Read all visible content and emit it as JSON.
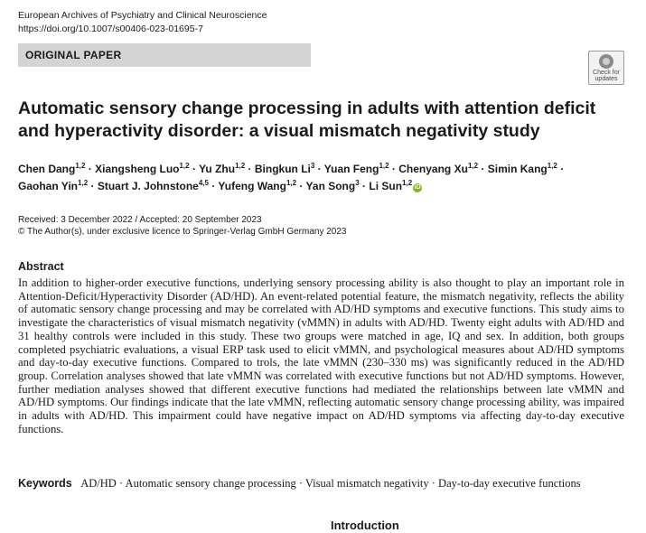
{
  "journal": {
    "name": "European Archives of Psychiatry and Clinical Neuroscience",
    "doi": "https://doi.org/10.1007/s00406-023-01695-7"
  },
  "section_label": "ORIGINAL PAPER",
  "check_updates": {
    "line1": "Check for",
    "line2": "updates"
  },
  "title": "Automatic sensory change processing in adults with attention deficit and hyperactivity disorder: a visual mismatch negativity study",
  "authors": [
    {
      "name": "Chen Dang",
      "aff": "1,2"
    },
    {
      "name": "Xiangsheng Luo",
      "aff": "1,2"
    },
    {
      "name": "Yu Zhu",
      "aff": "1,2"
    },
    {
      "name": "Bingkun Li",
      "aff": "3"
    },
    {
      "name": "Yuan Feng",
      "aff": "1,2"
    },
    {
      "name": "Chenyang Xu",
      "aff": "1,2"
    },
    {
      "name": "Simin Kang",
      "aff": "1,2"
    },
    {
      "name": "Gaohan Yin",
      "aff": "1,2"
    },
    {
      "name": "Stuart J. Johnstone",
      "aff": "4,5"
    },
    {
      "name": "Yufeng Wang",
      "aff": "1,2"
    },
    {
      "name": "Yan Song",
      "aff": "3"
    },
    {
      "name": "Li Sun",
      "aff": "1,2"
    }
  ],
  "orcid_label": "iD",
  "dates": {
    "received_accepted": "Received: 3 December 2022 / Accepted: 20 September 2023",
    "copyright": "© The Author(s), under exclusive licence to Springer-Verlag GmbH Germany 2023"
  },
  "abstract": {
    "heading": "Abstract",
    "body": "In addition to higher-order executive functions, underlying sensory processing ability is also thought to play an important role in Attention-Deficit/Hyperactivity Disorder (AD/HD). An event-related potential feature, the mismatch negativity, reflects the ability of automatic sensory change processing and may be correlated with AD/HD symptoms and executive functions. This study aims to investigate the characteristics of visual mismatch negativity (vMMN) in adults with AD/HD. Twenty eight adults with AD/HD and 31 healthy controls were included in this study. These two groups were matched in age, IQ and sex. In addition, both groups completed psychiatric evaluations, a visual ERP task used to elicit vMMN, and psychological measures about AD/HD symptoms and day-to-day executive functions. Compared to trols, the late vMMN (230–330 ms) was significantly reduced in the AD/HD group. Correlation analyses showed that late vMMN was correlated with executive functions but not AD/HD symptoms. However, further mediation analyses showed that different executive functions had mediated the relationships between late vMMN and AD/HD symptoms. Our findings indicate that the late vMMN, reflecting automatic sensory change processing ability, was impaired in adults with AD/HD. This impairment could have negative impact on AD/HD symptoms via affecting day-to-day executive functions."
  },
  "keywords": {
    "label": "Keywords",
    "list": "AD/HD · Automatic sensory change processing · Visual mismatch negativity · Day-to-day executive functions"
  },
  "next_section": "Introduction"
}
